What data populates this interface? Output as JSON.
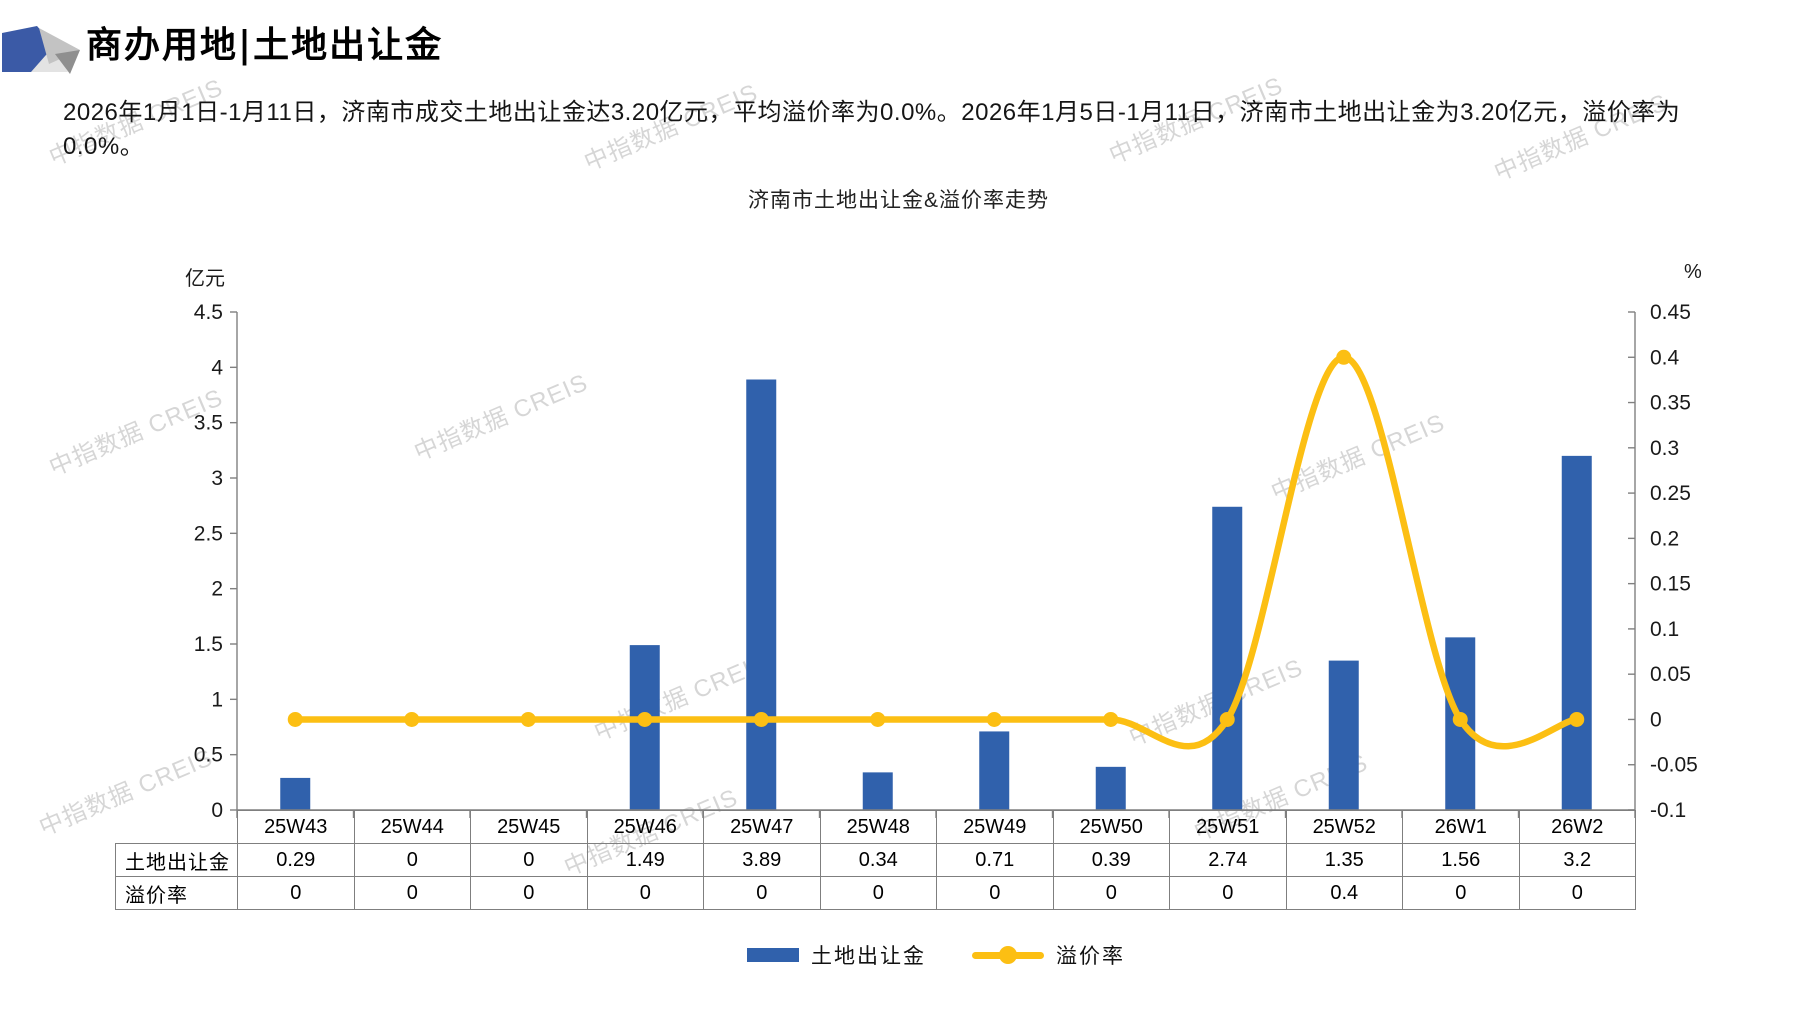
{
  "header": {
    "title": "商办用地|土地出让金",
    "paragraph": "2026年1月1日-1月11日，济南市成交土地出让金达3.20亿元，平均溢价率为0.0%。2026年1月5日-1月11日，济南市土地出让金为3.20亿元，溢价率为0.0%。"
  },
  "watermark": {
    "text": "中指数据 CREIS"
  },
  "colors": {
    "bar": "#3061AC",
    "line": "#FCBF13",
    "axis": "#808080",
    "logo_blue": "#3B5AA6",
    "logo_gray_light": "#C3C3C3",
    "logo_gray_pale": "#E3E3E3",
    "logo_gray_mid": "#8F8F8F"
  },
  "chart_data": {
    "type": "bar+line (dual axis)",
    "title": "济南市土地出让金&溢价率走势",
    "categories": [
      "25W43",
      "25W44",
      "25W45",
      "25W46",
      "25W47",
      "25W48",
      "25W49",
      "25W50",
      "25W51",
      "25W52",
      "26W1",
      "26W2"
    ],
    "left_axis": {
      "unit": "亿元",
      "min": 0,
      "max": 4.5,
      "tick_labels": [
        "4.5",
        "4",
        "3.5",
        "3",
        "2.5",
        "2",
        "1.5",
        "1",
        "0.5",
        "0"
      ]
    },
    "right_axis": {
      "unit": "%",
      "min": -0.1,
      "max": 0.45,
      "tick_labels": [
        "0.45",
        "0.4",
        "0.35",
        "0.3",
        "0.25",
        "0.2",
        "0.15",
        "0.1",
        "0.05",
        "0",
        "-0.05",
        "-0.1"
      ]
    },
    "series": [
      {
        "name": "土地出让金",
        "type": "bar",
        "axis": "left",
        "values": [
          0.29,
          0,
          0,
          1.49,
          3.89,
          0.34,
          0.71,
          0.39,
          2.74,
          1.35,
          1.56,
          3.2
        ]
      },
      {
        "name": "溢价率",
        "type": "line",
        "axis": "right",
        "smooth": true,
        "values": [
          0,
          0,
          0,
          0,
          0,
          0,
          0,
          0,
          0,
          0.4,
          0,
          0
        ]
      }
    ],
    "grid": "off",
    "legend_position": "bottom"
  },
  "table": {
    "row_headers": [
      "土地出让金",
      "溢价率"
    ],
    "rows": [
      [
        "0.29",
        "0",
        "0",
        "1.49",
        "3.89",
        "0.34",
        "0.71",
        "0.39",
        "2.74",
        "1.35",
        "1.56",
        "3.2"
      ],
      [
        "0",
        "0",
        "0",
        "0",
        "0",
        "0",
        "0",
        "0",
        "0",
        "0.4",
        "0",
        "0"
      ]
    ]
  }
}
